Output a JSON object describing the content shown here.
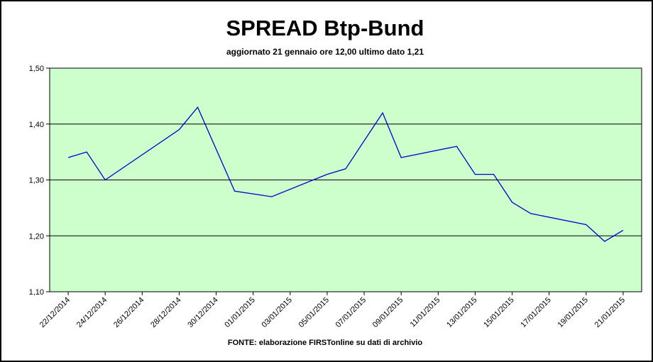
{
  "chart_data": {
    "type": "line",
    "title": "SPREAD Btp-Bund",
    "subtitle": "aggiornato 21 gennaio ore 12,00  ultimo dato  1,21",
    "source": "FONTE: elaborazione FIRSTonline su dati di archivio",
    "xlabel": "",
    "ylabel": "",
    "ylim": [
      1.1,
      1.5
    ],
    "y_ticks": [
      "1,10",
      "1,20",
      "1,30",
      "1,40",
      "1,50"
    ],
    "y_tick_values": [
      1.1,
      1.2,
      1.3,
      1.4,
      1.5
    ],
    "x_tick_labels": [
      "22/12/2014",
      "24/12/2014",
      "26/12/2014",
      "28/12/2014",
      "30/12/2014",
      "01/01/2015",
      "03/01/2015",
      "05/01/2015",
      "07/01/2015",
      "09/01/2015",
      "11/01/2015",
      "13/01/2015",
      "15/01/2015",
      "17/01/2015",
      "19/01/2015",
      "21/01/2015"
    ],
    "x_range": [
      "21/12/2014",
      "22/01/2015"
    ],
    "grid": "horizontal",
    "legend": "none",
    "colors": {
      "plot_background": "#ccffcc",
      "line": "#0000cc",
      "grid": "#000000"
    },
    "series": [
      {
        "points": [
          [
            "22/12/2014",
            1.34
          ],
          [
            "23/12/2014",
            1.35
          ],
          [
            "24/12/2014",
            1.3
          ],
          [
            "28/12/2014",
            1.39
          ],
          [
            "29/12/2014",
            1.43
          ],
          [
            "31/12/2014",
            1.28
          ],
          [
            "02/01/2015",
            1.27
          ],
          [
            "05/01/2015",
            1.31
          ],
          [
            "06/01/2015",
            1.32
          ],
          [
            "08/01/2015",
            1.42
          ],
          [
            "09/01/2015",
            1.34
          ],
          [
            "12/01/2015",
            1.36
          ],
          [
            "13/01/2015",
            1.31
          ],
          [
            "14/01/2015",
            1.31
          ],
          [
            "15/01/2015",
            1.26
          ],
          [
            "16/01/2015",
            1.24
          ],
          [
            "19/01/2015",
            1.22
          ],
          [
            "20/01/2015",
            1.19
          ],
          [
            "21/01/2015",
            1.21
          ]
        ]
      }
    ]
  }
}
